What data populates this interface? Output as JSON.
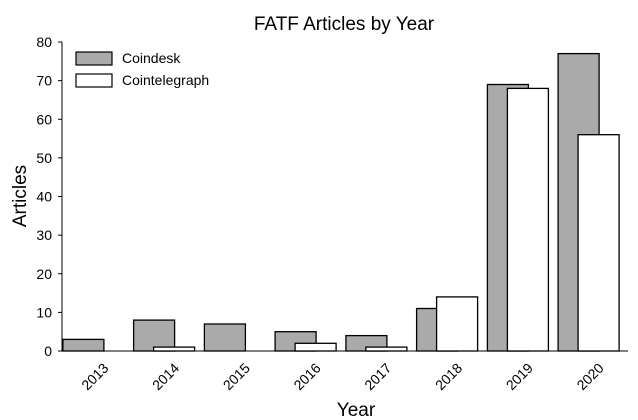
{
  "chart_data": {
    "type": "bar",
    "title": "FATF Articles by Year",
    "xlabel": "Year",
    "ylabel": "Articles",
    "categories": [
      "2013",
      "2014",
      "2015",
      "2016",
      "2017",
      "2018",
      "2019",
      "2020"
    ],
    "series": [
      {
        "name": "Coindesk",
        "color": "#aaaaaa",
        "values": [
          3,
          8,
          7,
          5,
          4,
          11,
          69,
          77
        ]
      },
      {
        "name": "Cointelegraph",
        "color": "#ffffff",
        "values": [
          0,
          1,
          0,
          2,
          1,
          14,
          68,
          56
        ]
      }
    ],
    "ylim": [
      0,
      80
    ],
    "yticks": [
      "0",
      "10",
      "20",
      "30",
      "40",
      "50",
      "60",
      "70",
      "80"
    ],
    "grid": false,
    "legend_position": "top-left"
  }
}
